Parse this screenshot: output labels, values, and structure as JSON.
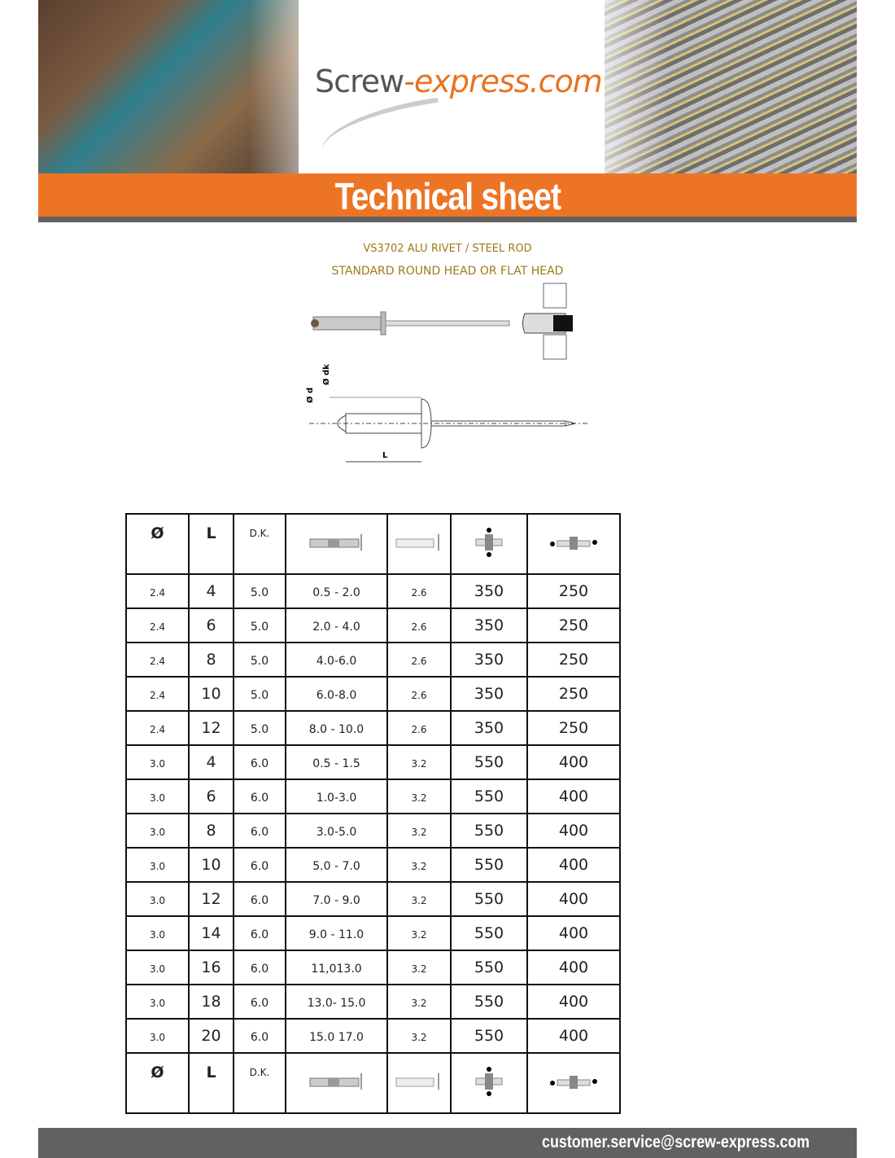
{
  "header": {
    "logo_main": "Screw",
    "logo_accent": "-express.com",
    "banner_title": "Technical sheet"
  },
  "product": {
    "line1": "VS3702 ALU RIVET / STEEL ROD",
    "line2": "STANDARD ROUND HEAD OR FLAT HEAD"
  },
  "diagram": {
    "label_d": "Ø d",
    "label_dk": "Ø dk",
    "label_l": "L"
  },
  "table": {
    "headers": [
      "Ø",
      "L",
      "D.K."
    ],
    "header_icons": [
      "grip-range-icon",
      "drill-hole-icon",
      "shear-strength-icon",
      "tensile-strength-icon"
    ],
    "rows": [
      [
        "2.4",
        "4",
        "5.0",
        "0.5 - 2.0",
        "2.6",
        "350",
        "250"
      ],
      [
        "2.4",
        "6",
        "5.0",
        "2.0 - 4.0",
        "2.6",
        "350",
        "250"
      ],
      [
        "2.4",
        "8",
        "5.0",
        "4.0-6.0",
        "2.6",
        "350",
        "250"
      ],
      [
        "2.4",
        "10",
        "5.0",
        "6.0-8.0",
        "2.6",
        "350",
        "250"
      ],
      [
        "2.4",
        "12",
        "5.0",
        "8.0 - 10.0",
        "2.6",
        "350",
        "250"
      ],
      [
        "3.0",
        "4",
        "6.0",
        "0.5 - 1.5",
        "3.2",
        "550",
        "400"
      ],
      [
        "3.0",
        "6",
        "6.0",
        "1.0-3.0",
        "3.2",
        "550",
        "400"
      ],
      [
        "3.0",
        "8",
        "6.0",
        "3.0-5.0",
        "3.2",
        "550",
        "400"
      ],
      [
        "3.0",
        "10",
        "6.0",
        "5.0 - 7.0",
        "3.2",
        "550",
        "400"
      ],
      [
        "3.0",
        "12",
        "6.0",
        "7.0 - 9.0",
        "3.2",
        "550",
        "400"
      ],
      [
        "3.0",
        "14",
        "6.0",
        "9.0 - 11.0",
        "3.2",
        "550",
        "400"
      ],
      [
        "3.0",
        "16",
        "6.0",
        "11,013.0",
        "3.2",
        "550",
        "400"
      ],
      [
        "3.0",
        "18",
        "6.0",
        "13.0- 15.0",
        "3.2",
        "550",
        "400"
      ],
      [
        "3.0",
        "20",
        "6.0",
        "15.0 17.0",
        "3.2",
        "550",
        "400"
      ]
    ]
  },
  "footer": {
    "email": "customer.service@screw-express.com"
  },
  "colors": {
    "brand_orange": "#ee7425",
    "footer_gray": "#616161",
    "subtitle_gold": "#a07a1a"
  }
}
